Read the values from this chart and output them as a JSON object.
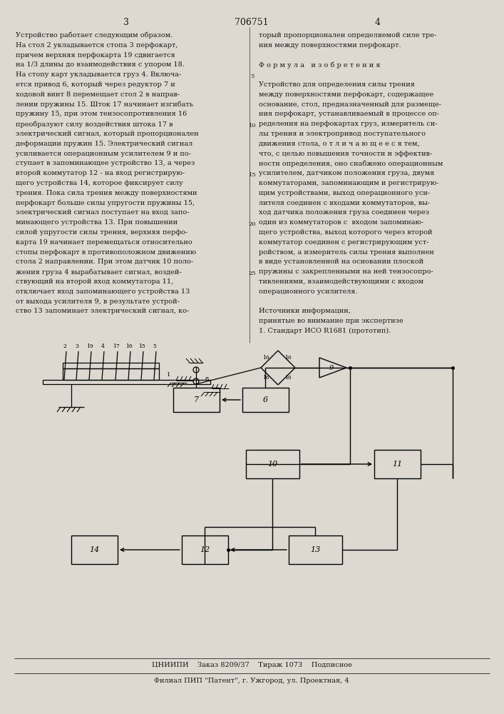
{
  "page_color": "#ddd9d0",
  "text_color": "#1a1a1a",
  "line_color": "#1a1a1a",
  "title_page_num_left": "3",
  "title_center": "706751",
  "title_page_num_right": "4",
  "left_col_lines": [
    "Устройство работает следующим образом.",
    "На стол 2 укладывается стопа 3 перфокарт,",
    "причем верхняя перфокарта 19 сдвигается",
    "на 1/3 длины до взаимодействия с упором 18.",
    "На стопу карт укладывается груз 4. Включа-",
    "ется привод 6, который через редуктор 7 и",
    "ходовой винт 8 перемещает стол 2 в направ-",
    "лении пружины 15. Шток 17 начинает изгибать",
    "пружину 15, при этом тензосопротивления 16",
    "преобразуют силу воздействия штока 17 в",
    "электрический сигнал, который пропорционален",
    "деформации пружин 15. Электрический сигнал",
    "усиливается операционным усилителем 9 и по-",
    "ступает в запоминающее устройство 13, а через",
    "второй коммутатор 12 - на вход регистрирую-",
    "щего устройства 14, которое фиксирует силу",
    "трения. Пока сила трения между поверхностями",
    "перфокарт больше силы упругости пружины 15,",
    "электрический сигнал поступает на вход запо-",
    "минающего устройства 13. При повышении",
    "силой упругости силы трения, верхняя перфо-",
    "карта 19 начинает перемещаться относительно",
    "стопы перфокарт в противоположном движению",
    "стола 2 направлении. При этом датчик 10 поло-",
    "жения груза 4 вырабатывает сигнал, воздей-",
    "ствующий на второй вход коммутатора 11,",
    "отключает вход запоминающего устройства 13",
    "от выхода усилителя 9, в результате устрой-",
    "ство 13 запоминает электрический сигнал, ко-"
  ],
  "right_col_lines": [
    "торый пропорционален определяемой силе тре-",
    "ния между поверхностями перфокарт.",
    "",
    "Ф о р м у л а   и з о б р е т е н и я",
    "",
    "Устройство для определения силы трения",
    "между поверхностями перфокарт, содержащее",
    "основание, стол, предназначенный для размеще-",
    "ния перфокарт, устанавливаемый в процессе оп-",
    "ределения на перфокартах груз, измеритель си-",
    "лы трения и электропривод поступательного",
    "движения стола, о т л и ч а ю щ е е с я тем,",
    "что, с целью повышения точности и эффектив-",
    "ности определения, оно снабжено операционным",
    "усилителем, датчиком положения груза, двумя",
    "коммутаторами, запоминающим и регистрирую-",
    "щим устройствами, выход операционного уси-",
    "лителя соединен с входами коммутаторов, вы-",
    "ход датчика положения груза соединен через",
    "один из коммутаторов с  входом запоминаю-",
    "щего устройства, выход которого через второй",
    "коммутатор соединен с регистрирующим уст-",
    "ройством, а измеритель силы трения выполнен",
    "в виде установленной на основании плоской",
    "пружины с закрепленными на ней тензосопро-",
    "тивлениями, взаимодействующими с входом",
    "операционного усилителя.",
    "",
    "Источники информации,",
    "принятые во внимание при экспертизе",
    "1. Стандарт ИСО R1681 (прототип)."
  ],
  "footer_line1": "ЦНИИПИ    Заказ 8209/37    Тираж 1073    Подписное",
  "footer_line2": "Филиал ПИП \"Патент\", г. Ужгород, ул. Проектная, 4"
}
